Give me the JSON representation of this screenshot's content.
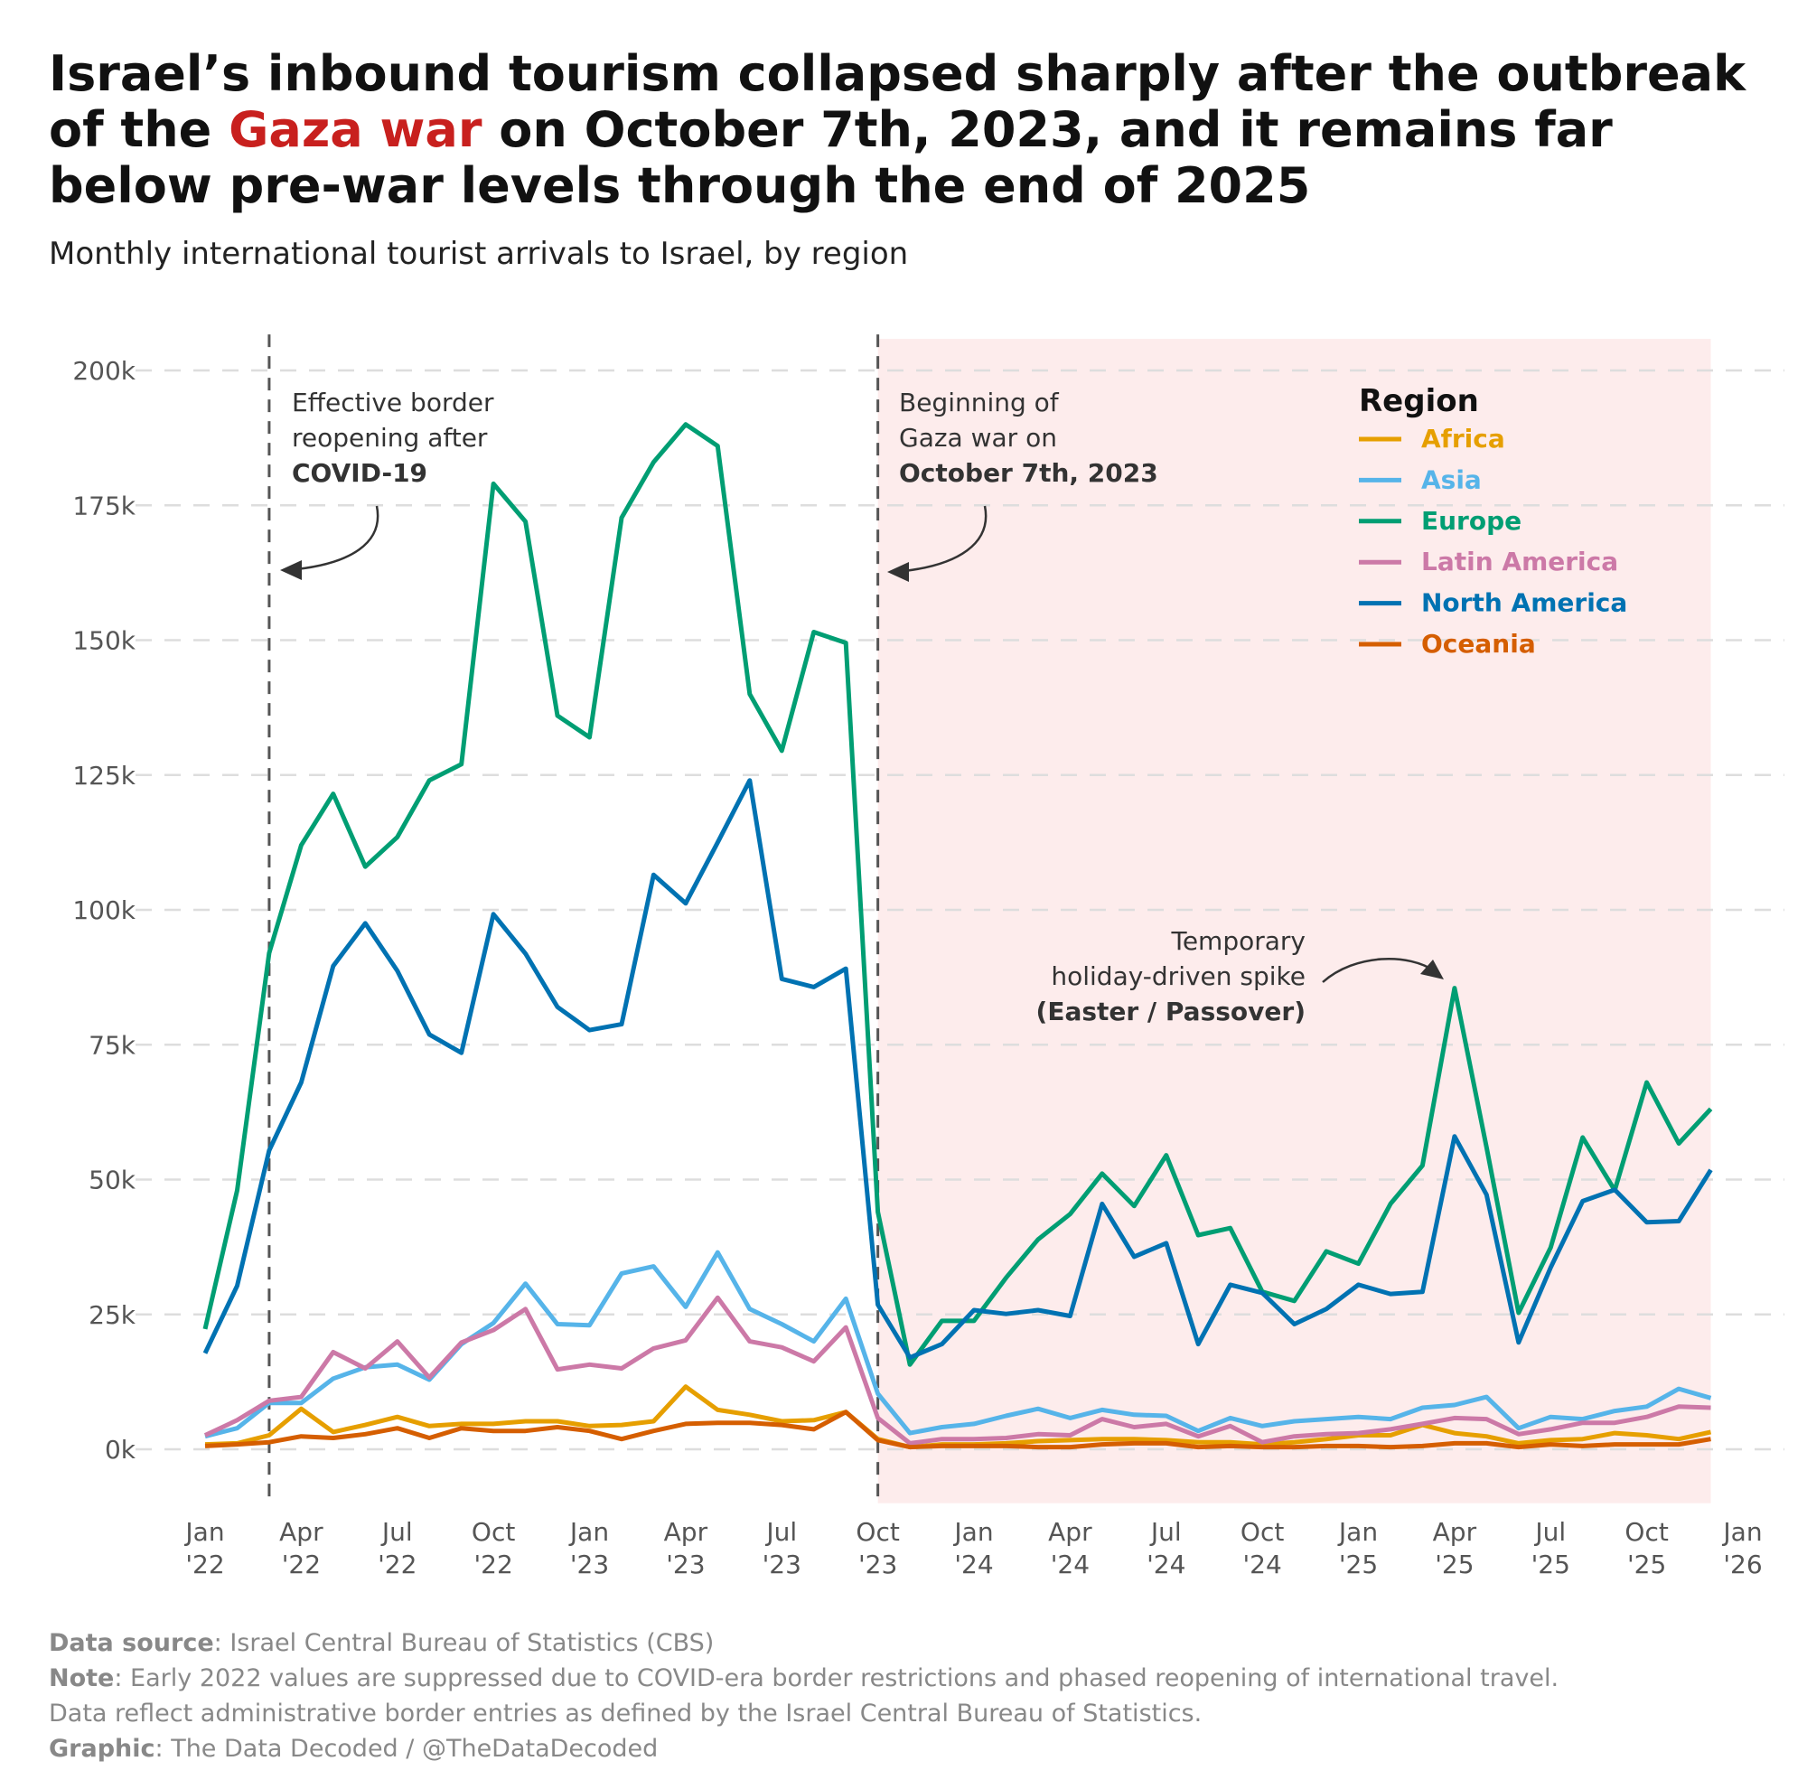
{
  "title": {
    "line1": "Israel’s inbound tourism collapsed sharply after the outbreak",
    "line2_pre": "of the ",
    "line2_highlight": "Gaza war",
    "line2_post": " on October 7th, 2023, and it remains far",
    "line3": "below pre-war levels through the end of 2025",
    "highlight_color": "#C8201E"
  },
  "subtitle": "Monthly international tourist arrivals to Israel, by region",
  "annotations": {
    "covid": [
      "Effective border",
      "reopening after",
      "COVID-19"
    ],
    "war": [
      "Beginning of",
      "Gaza war on",
      "October 7th, 2023"
    ],
    "spike": [
      "Temporary",
      "holiday-driven spike",
      "(Easter / Passover)"
    ]
  },
  "footer": {
    "source_label": "Data source",
    "source_text": ": Israel Central Bureau of Statistics (CBS)",
    "note_label": "Note",
    "note_text": ": Early 2022 values are suppressed due to COVID-era border restrictions and phased reopening of international travel.",
    "note_line2": "Data reflect administrative border entries as defined by the Israel Central Bureau of Statistics.",
    "graphic_label": "Graphic",
    "graphic_text": ": The Data Decoded / @TheDataDecoded"
  },
  "chart_data": {
    "type": "line",
    "title": "Israel’s inbound tourism collapsed sharply after the outbreak of the Gaza war on October 7th, 2023, and it remains far below pre-war levels through the end of 2025",
    "subtitle": "Monthly international tourist arrivals to Israel, by region",
    "xlabel": "",
    "ylabel": "",
    "x_start": "2022-01",
    "x_end": "2025-12",
    "xlim": [
      "2022-01",
      "2026-01"
    ],
    "ylim": [
      -10000,
      205000
    ],
    "y_ticks": [
      0,
      25000,
      50000,
      75000,
      100000,
      125000,
      150000,
      175000,
      200000
    ],
    "y_tick_labels": [
      "0k",
      "25k",
      "50k",
      "75k",
      "100k",
      "125k",
      "150k",
      "175k",
      "200k"
    ],
    "x_tick_labels": [
      [
        "Jan",
        "'22"
      ],
      [
        "Apr",
        "'22"
      ],
      [
        "Jul",
        "'22"
      ],
      [
        "Oct",
        "'22"
      ],
      [
        "Jan",
        "'23"
      ],
      [
        "Apr",
        "'23"
      ],
      [
        "Jul",
        "'23"
      ],
      [
        "Oct",
        "'23"
      ],
      [
        "Jan",
        "'24"
      ],
      [
        "Apr",
        "'24"
      ],
      [
        "Jul",
        "'24"
      ],
      [
        "Oct",
        "'24"
      ],
      [
        "Jan",
        "'25"
      ],
      [
        "Apr",
        "'25"
      ],
      [
        "Jul",
        "'25"
      ],
      [
        "Oct",
        "'25"
      ],
      [
        "Jan",
        "'26"
      ]
    ],
    "grid": "horizontal dashed",
    "legend_title": "Region",
    "legend_placement": "top-right",
    "shaded_period": [
      "2023-10",
      "2025-12"
    ],
    "shade_color": "#FDECEC",
    "reference_lines": [
      "2022-03",
      "2023-10"
    ],
    "series": [
      {
        "name": "Africa",
        "color": "#E69F00",
        "values": [
          900,
          1100,
          2600,
          7500,
          3200,
          4500,
          6000,
          4300,
          4700,
          4700,
          5200,
          5200,
          4300,
          4500,
          5200,
          11600,
          7300,
          6400,
          5200,
          5400,
          6900,
          1900,
          400,
          900,
          900,
          1100,
          1500,
          1700,
          1900,
          1900,
          1700,
          1300,
          1300,
          900,
          1300,
          1900,
          2600,
          2600,
          4500,
          3000,
          2400,
          1100,
          1700,
          1900,
          3000,
          2600,
          1900,
          3200
        ]
      },
      {
        "name": "Asia",
        "color": "#56B4E9",
        "values": [
          2400,
          3900,
          8600,
          8600,
          13100,
          15200,
          15700,
          12900,
          19500,
          23400,
          30700,
          23200,
          23000,
          32600,
          33900,
          26400,
          36500,
          26000,
          23200,
          20000,
          27900,
          10300,
          3000,
          4100,
          4700,
          6200,
          7500,
          5800,
          7300,
          6400,
          6200,
          3400,
          5800,
          4300,
          5200,
          5600,
          6000,
          5600,
          7700,
          8200,
          9700,
          3900,
          6000,
          5600,
          7100,
          7900,
          11200,
          9500
        ]
      },
      {
        "name": "Europe",
        "color": "#009E73",
        "values": [
          22300,
          48000,
          92000,
          112000,
          121500,
          108000,
          113500,
          124000,
          127000,
          179000,
          172000,
          136000,
          132000,
          172700,
          183000,
          190000,
          186000,
          140000,
          129500,
          151500,
          149500,
          44000,
          15700,
          23800,
          23800,
          31800,
          38900,
          43600,
          51100,
          45100,
          54500,
          39700,
          41000,
          29200,
          27500,
          36700,
          34400,
          45500,
          52600,
          85500,
          56000,
          25300,
          37400,
          57800,
          48000,
          68000,
          56700,
          63100
        ]
      },
      {
        "name": "Latin America",
        "color": "#CC79A7",
        "values": [
          2600,
          5400,
          9000,
          9700,
          18000,
          15000,
          20000,
          13300,
          19800,
          22100,
          26000,
          14800,
          15700,
          15000,
          18700,
          20200,
          28100,
          20000,
          18900,
          16300,
          22600,
          5800,
          1100,
          1900,
          1900,
          2100,
          2800,
          2600,
          5600,
          4100,
          4700,
          2400,
          4300,
          1300,
          2400,
          2800,
          3000,
          3700,
          4700,
          5800,
          5600,
          2800,
          3700,
          4900,
          4900,
          6000,
          7900,
          7700
        ]
      },
      {
        "name": "North America",
        "color": "#0072B2",
        "values": [
          17800,
          30300,
          55400,
          68000,
          89600,
          97500,
          88700,
          76900,
          73500,
          99200,
          91900,
          82000,
          77700,
          78800,
          106500,
          101200,
          112500,
          124000,
          87200,
          85700,
          89100,
          26800,
          17000,
          19500,
          25800,
          25100,
          25800,
          24700,
          45500,
          35700,
          38200,
          19500,
          30500,
          29000,
          23200,
          26000,
          30500,
          28800,
          29200,
          58000,
          47200,
          19800,
          33700,
          46000,
          48100,
          42100,
          42300,
          51800
        ]
      },
      {
        "name": "Oceania",
        "color": "#D55E00",
        "values": [
          600,
          900,
          1300,
          2400,
          2100,
          2800,
          3900,
          2100,
          3900,
          3400,
          3400,
          4100,
          3400,
          1900,
          3400,
          4700,
          4900,
          4900,
          4500,
          3700,
          6900,
          1700,
          400,
          600,
          600,
          600,
          400,
          400,
          900,
          1100,
          1100,
          400,
          600,
          400,
          400,
          600,
          600,
          400,
          600,
          1100,
          1100,
          400,
          900,
          600,
          900,
          900,
          900,
          1900
        ]
      }
    ]
  }
}
